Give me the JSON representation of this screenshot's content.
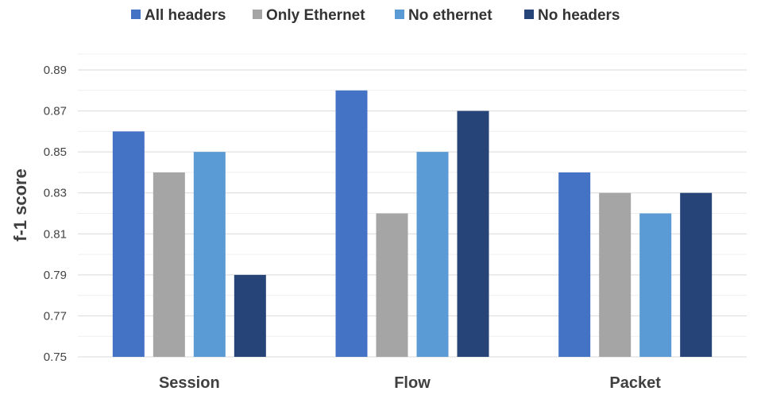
{
  "chart_data": {
    "type": "bar",
    "title": "",
    "xlabel": "",
    "ylabel": "f-1 score",
    "ylim": [
      0.75,
      0.89
    ],
    "yticks": [
      0.75,
      0.77,
      0.79,
      0.81,
      0.83,
      0.85,
      0.87,
      0.89
    ],
    "grid": true,
    "legend_position": "top",
    "categories": [
      "Session",
      "Flow",
      "Packet"
    ],
    "series": [
      {
        "name": "All headers",
        "color": "#4472C4",
        "values": [
          0.86,
          0.88,
          0.84
        ]
      },
      {
        "name": "Only Ethernet",
        "color": "#A5A5A5",
        "values": [
          0.84,
          0.82,
          0.83
        ]
      },
      {
        "name": "No ethernet",
        "color": "#5B9BD5",
        "values": [
          0.85,
          0.85,
          0.82
        ]
      },
      {
        "name": "No headers",
        "color": "#264478",
        "values": [
          0.79,
          0.87,
          0.83
        ]
      }
    ]
  }
}
